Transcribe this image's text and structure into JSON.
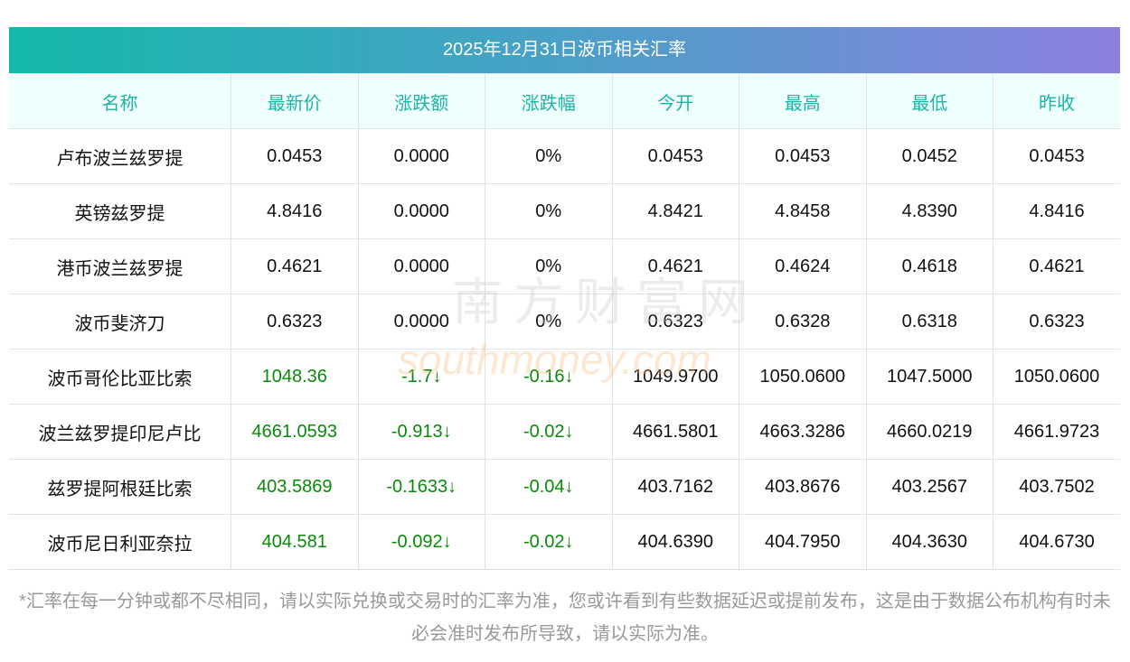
{
  "title": "2025年12月31日波币相关汇率",
  "headers": [
    "名称",
    "最新价",
    "涨跌额",
    "涨跌幅",
    "今开",
    "最高",
    "最低",
    "昨收"
  ],
  "rows": [
    [
      "卢布波兰兹罗提",
      "0.0453",
      "0.0000",
      "0%",
      "0.0453",
      "0.0453",
      "0.0452",
      "0.0453"
    ],
    [
      "英镑兹罗提",
      "4.8416",
      "0.0000",
      "0%",
      "4.8421",
      "4.8458",
      "4.8390",
      "4.8416"
    ],
    [
      "港币波兰兹罗提",
      "0.4621",
      "0.0000",
      "0%",
      "0.4621",
      "0.4624",
      "0.4618",
      "0.4621"
    ],
    [
      "波币斐济刀",
      "0.6323",
      "0.0000",
      "0%",
      "0.6323",
      "0.6328",
      "0.6318",
      "0.6323"
    ],
    [
      "波币哥伦比亚比索",
      "1048.36",
      "-1.7↓",
      "-0.16↓",
      "1049.9700",
      "1050.0600",
      "1047.5000",
      "1050.0600"
    ],
    [
      "波兰兹罗提印尼卢比",
      "4661.0593",
      "-0.913↓",
      "-0.02↓",
      "4661.5801",
      "4663.3286",
      "4660.0219",
      "4661.9723"
    ],
    [
      "兹罗提阿根廷比索",
      "403.5869",
      "-0.1633↓",
      "-0.04↓",
      "403.7162",
      "403.8676",
      "403.2567",
      "403.7502"
    ],
    [
      "波币尼日利亚奈拉",
      "404.581",
      "-0.092↓",
      "-0.02↓",
      "404.6390",
      "404.7950",
      "404.3630",
      "404.6730"
    ]
  ],
  "down_color": "#0a8a0a",
  "note": "*汇率在每一分钟或都不尽相同，请以实际兑换或交易时的汇率为准，您或许看到有些数据延迟或提前发布，这是由于数据公布机构有时未必会准时发布所导致，请以实际为准。",
  "watermark": {
    "cn": "南方财富网",
    "en": "southmoney.com"
  }
}
